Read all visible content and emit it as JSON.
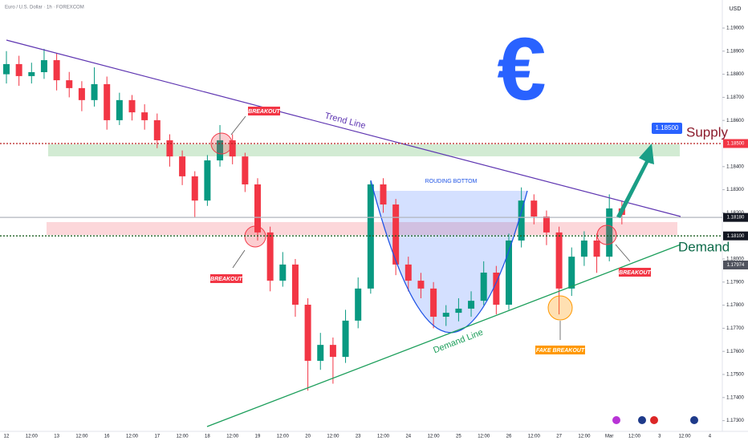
{
  "header": {
    "symbol": "Euro / U.S. Dollar · 1h · FOREXCOM",
    "currency": "USD"
  },
  "chart_data": {
    "type": "candlestick",
    "x": [
      0,
      0.5,
      1,
      1.5,
      2,
      2.5,
      3,
      3.5,
      4,
      4.5,
      5,
      5.5,
      6,
      6.5,
      7,
      7.5,
      8,
      8.5,
      9,
      9.5,
      10,
      10.5,
      11,
      11.5,
      12,
      12.5,
      13,
      13.5,
      14,
      14.5,
      15,
      15.5,
      16,
      16.5,
      17,
      17.5,
      18,
      18.5,
      19,
      19.5,
      20,
      20.5,
      21,
      21.5,
      22,
      22.5,
      23,
      23.5,
      24,
      24.5
    ],
    "open": [
      1.188,
      1.18844,
      1.18792,
      1.18809,
      1.18861,
      1.18774,
      1.1874,
      1.18688,
      1.18757,
      1.18601,
      1.18688,
      1.18635,
      1.18601,
      1.18514,
      1.18444,
      1.18358,
      1.18253,
      1.18427,
      1.18514,
      1.18444,
      1.18323,
      1.18115,
      1.17906,
      1.17976,
      1.17802,
      1.17559,
      1.17628,
      1.17576,
      1.17733,
      1.17872,
      1.18323,
      1.18236,
      1.17976,
      1.17906,
      1.17872,
      1.1775,
      1.17767,
      1.17785,
      1.17819,
      1.17941,
      1.17802,
      1.1808,
      1.18253,
      1.18184,
      1.18115,
      1.17872,
      1.1801,
      1.1808,
      1.1801,
      1.18219
    ],
    "high": [
      1.189,
      1.1888,
      1.1885,
      1.1891,
      1.1889,
      1.1881,
      1.1877,
      1.1883,
      1.1879,
      1.1872,
      1.1871,
      1.1867,
      1.1863,
      1.1854,
      1.1847,
      1.1838,
      1.1845,
      1.1858,
      1.1854,
      1.1846,
      1.1835,
      1.1814,
      1.1803,
      1.18,
      1.1783,
      1.1768,
      1.1766,
      1.1778,
      1.1792,
      1.1834,
      1.1835,
      1.1826,
      1.1801,
      1.1794,
      1.179,
      1.178,
      1.1783,
      1.1786,
      1.1799,
      1.1797,
      1.1811,
      1.1831,
      1.1828,
      1.1821,
      1.1814,
      1.1805,
      1.1812,
      1.1811,
      1.1828,
      1.1825
    ],
    "low": [
      1.1876,
      1.1875,
      1.1876,
      1.1878,
      1.1873,
      1.187,
      1.1864,
      1.1866,
      1.1856,
      1.1858,
      1.186,
      1.1856,
      1.1848,
      1.184,
      1.1832,
      1.1818,
      1.1823,
      1.184,
      1.1841,
      1.1829,
      1.1808,
      1.1786,
      1.1788,
      1.1775,
      1.1743,
      1.1752,
      1.1746,
      1.1755,
      1.177,
      1.1785,
      1.182,
      1.1793,
      1.1786,
      1.1783,
      1.177,
      1.1771,
      1.1773,
      1.1775,
      1.178,
      1.1776,
      1.1778,
      1.1805,
      1.1815,
      1.1806,
      1.1776,
      1.1784,
      1.1797,
      1.1794,
      1.1799,
      1.1815
    ],
    "close": [
      1.18844,
      1.18792,
      1.18809,
      1.18861,
      1.18774,
      1.1874,
      1.18688,
      1.18757,
      1.18601,
      1.18688,
      1.18635,
      1.18601,
      1.18514,
      1.18444,
      1.18358,
      1.18253,
      1.18427,
      1.18514,
      1.18444,
      1.18323,
      1.18115,
      1.17906,
      1.17976,
      1.17802,
      1.17559,
      1.17628,
      1.17576,
      1.17733,
      1.17872,
      1.18323,
      1.18236,
      1.17976,
      1.17906,
      1.17872,
      1.1775,
      1.17767,
      1.17785,
      1.17819,
      1.17941,
      1.17802,
      1.1808,
      1.18253,
      1.18184,
      1.18115,
      1.17872,
      1.1801,
      1.1808,
      1.1801,
      1.18219,
      1.18191
    ],
    "up_color": "#089981",
    "down_color": "#f23645",
    "xticks": [
      "12",
      "12:00",
      "13",
      "12:00",
      "16",
      "12:00",
      "17",
      "12:00",
      "18",
      "12:00",
      "19",
      "12:00",
      "20",
      "12:00",
      "23",
      "12:00",
      "24",
      "12:00",
      "25",
      "12:00",
      "26",
      "12:00",
      "27",
      "12:00",
      "Mar",
      "12:00",
      "3",
      "12:00",
      "4"
    ],
    "ylim": [
      1.173,
      1.19
    ],
    "yticks": [
      {
        "value": 1.19,
        "label": "1.19000"
      },
      {
        "value": 1.189,
        "label": "1.18900"
      },
      {
        "value": 1.188,
        "label": "1.18800"
      },
      {
        "value": 1.187,
        "label": "1.18700"
      },
      {
        "value": 1.186,
        "label": "1.18600"
      },
      {
        "value": 1.184,
        "label": "1.18400"
      },
      {
        "value": 1.183,
        "label": "1.18300"
      },
      {
        "value": 1.182,
        "label": "1.18200"
      },
      {
        "value": 1.18,
        "label": "1.18000"
      },
      {
        "value": 1.179,
        "label": "1.17900"
      },
      {
        "value": 1.178,
        "label": "1.17800"
      },
      {
        "value": 1.177,
        "label": "1.17700"
      },
      {
        "value": 1.176,
        "label": "1.17600"
      },
      {
        "value": 1.175,
        "label": "1.17500"
      },
      {
        "value": 1.174,
        "label": "1.17400"
      },
      {
        "value": 1.173,
        "label": "1.17300"
      }
    ],
    "price_labels": [
      {
        "value": 1.185,
        "label": "1.18500",
        "color": "#f23645",
        "line": "#b71c1c"
      },
      {
        "value": 1.1818,
        "label": "1.18180",
        "color": "#131722",
        "line": "#b2b5be"
      },
      {
        "value": 1.181,
        "label": "1.18100",
        "color": "#131722",
        "line": "#1b5e20"
      },
      {
        "value": 1.17974,
        "label": "1.17974",
        "color": "#50535e"
      }
    ],
    "target": {
      "value": 1.185,
      "label": "1.18500"
    },
    "annotations": {
      "trend_line": "Trend Line",
      "demand_line": "Demand Line",
      "rounding_bottom": "ROUDING BOTTOM",
      "breakout_1": "BREAKOUT",
      "breakout_2": "BREAKOUT",
      "breakout_3": "BREAKOUT",
      "fake_breakout": "FAKE BREAKOUT",
      "supply": "Supply",
      "demand": "Demand",
      "currency_icon": "€"
    }
  }
}
